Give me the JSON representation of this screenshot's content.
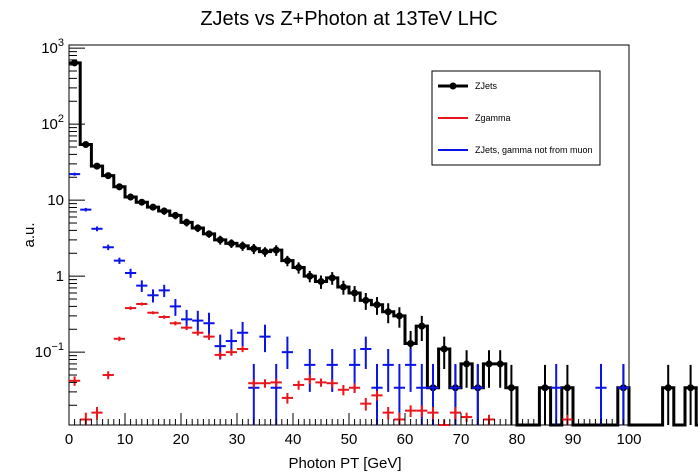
{
  "chart_data": {
    "type": "histogram",
    "title": "ZJets vs Z+Photon at 13TeV LHC",
    "xlabel": "Photon PT [GeV]",
    "ylabel": "a.u.",
    "xlim": [
      0,
      100
    ],
    "ylim": [
      0.011,
      1100
    ],
    "yscale": "log",
    "bin_width": 2,
    "grid": false,
    "legend_placement": "top-right",
    "xticks": [
      "0",
      "10",
      "20",
      "30",
      "40",
      "50",
      "60",
      "70",
      "80",
      "90",
      "100"
    ],
    "yticks": [
      {
        "base": "10",
        "exp": "3"
      },
      {
        "base": "10",
        "exp": "2"
      },
      {
        "base": "10",
        "exp": ""
      },
      {
        "base": "1",
        "exp": ""
      },
      {
        "base": "10",
        "exp": "−1"
      }
    ],
    "colors": {
      "zjets": "#000000",
      "zgamma": "#e8161c",
      "zjets_gamma": "#0a14e6"
    },
    "series": [
      {
        "name": "ZJets",
        "values": [
          640,
          54,
          28,
          21,
          15,
          11,
          9.4,
          8.1,
          7.2,
          6.3,
          5.1,
          4.3,
          3.6,
          3.0,
          2.7,
          2.5,
          2.3,
          2.1,
          2.2,
          1.6,
          1.3,
          1.0,
          0.85,
          0.95,
          0.72,
          0.6,
          0.48,
          0.42,
          0.34,
          0.3,
          0.13,
          0.22,
          0.034,
          0.11,
          0.034,
          0.07,
          0.034,
          0.07,
          0.07,
          0.034,
          0.0,
          0.0,
          0.034,
          0.0,
          0.034,
          0.0,
          0.0,
          0.0,
          0.0,
          0.034,
          0.0,
          0.0,
          0.0,
          0.034,
          0.0,
          0.034,
          0.0,
          0.0,
          0.0,
          0.0,
          0.0,
          0.0,
          0.0,
          0.0,
          0.0,
          0.0,
          0.0,
          0.0,
          0.0,
          0.0
        ],
        "err_lo": [
          580,
          50,
          26,
          19,
          13.5,
          9.9,
          8.5,
          7.3,
          6.4,
          5.6,
          4.5,
          3.8,
          3.2,
          2.6,
          2.35,
          2.15,
          1.95,
          1.8,
          1.85,
          1.35,
          1.08,
          0.83,
          0.68,
          0.77,
          0.57,
          0.46,
          0.36,
          0.31,
          0.24,
          0.21,
          0.075,
          0.14,
          0.0,
          0.06,
          0.0,
          0.034,
          0.0,
          0.034,
          0.034,
          0.0,
          0.0,
          0.0,
          0.0,
          0.0,
          0.0,
          0.0,
          0.0,
          0.0,
          0.0,
          0.0,
          0.0,
          0.0,
          0.0,
          0.0,
          0.0,
          0.0,
          0.0,
          0.0,
          0.0,
          0.0,
          0.0,
          0.0,
          0.0,
          0.0,
          0.0,
          0.0,
          0.0,
          0.0,
          0.0,
          0.0
        ],
        "err_hi": [
          705,
          58,
          30,
          23,
          16.5,
          12.1,
          10.3,
          8.9,
          8.0,
          7.0,
          5.7,
          4.8,
          4.0,
          3.4,
          3.05,
          2.85,
          2.65,
          2.4,
          2.55,
          1.85,
          1.52,
          1.17,
          1.02,
          1.13,
          0.87,
          0.74,
          0.6,
          0.53,
          0.44,
          0.39,
          0.19,
          0.3,
          0.068,
          0.16,
          0.068,
          0.106,
          0.068,
          0.106,
          0.106,
          0.068,
          0.0,
          0.0,
          0.068,
          0.0,
          0.068,
          0.0,
          0.0,
          0.0,
          0.0,
          0.068,
          0.0,
          0.0,
          0.0,
          0.068,
          0.0,
          0.068,
          0.0,
          0.0,
          0.0,
          0.0,
          0.0,
          0.0,
          0.0,
          0.0,
          0.0,
          0.0,
          0.0,
          0.0,
          0.0,
          0.0
        ]
      },
      {
        "name": "Zgamma",
        "points": [
          [
            1,
            0.042,
            0.036,
            0.048
          ],
          [
            3,
            0.013,
            0.011,
            0.016
          ],
          [
            5,
            0.016,
            0.013,
            0.019
          ],
          [
            7,
            0.05,
            0.044,
            0.056
          ],
          [
            9,
            0.15,
            0.14,
            0.16
          ],
          [
            11,
            0.38,
            0.36,
            0.4
          ],
          [
            13,
            0.43,
            0.41,
            0.45
          ],
          [
            15,
            0.33,
            0.315,
            0.345
          ],
          [
            17,
            0.29,
            0.275,
            0.305
          ],
          [
            19,
            0.24,
            0.225,
            0.255
          ],
          [
            21,
            0.21,
            0.195,
            0.225
          ],
          [
            23,
            0.18,
            0.165,
            0.195
          ],
          [
            25,
            0.16,
            0.145,
            0.175
          ],
          [
            27,
            0.092,
            0.083,
            0.101
          ],
          [
            29,
            0.1,
            0.09,
            0.11
          ],
          [
            31,
            0.11,
            0.1,
            0.12
          ],
          [
            33,
            0.039,
            0.034,
            0.044
          ],
          [
            35,
            0.039,
            0.034,
            0.044
          ],
          [
            37,
            0.04,
            0.035,
            0.045
          ],
          [
            39,
            0.025,
            0.021,
            0.029
          ],
          [
            41,
            0.037,
            0.032,
            0.042
          ],
          [
            43,
            0.044,
            0.038,
            0.05
          ],
          [
            45,
            0.04,
            0.035,
            0.045
          ],
          [
            47,
            0.039,
            0.034,
            0.044
          ],
          [
            49,
            0.032,
            0.027,
            0.037
          ],
          [
            51,
            0.034,
            0.029,
            0.039
          ],
          [
            53,
            0.021,
            0.017,
            0.025
          ],
          [
            55,
            0.027,
            0.023,
            0.031
          ],
          [
            57,
            0.016,
            0.013,
            0.019
          ],
          [
            59,
            0.013,
            0.011,
            0.016
          ],
          [
            61,
            0.017,
            0.014,
            0.02
          ],
          [
            63,
            0.017,
            0.014,
            0.02
          ],
          [
            65,
            0.016,
            0.013,
            0.019
          ],
          [
            67,
            0.011,
            0.009,
            0.013
          ],
          [
            69,
            0.016,
            0.013,
            0.019
          ],
          [
            71,
            0.014,
            0.012,
            0.016
          ],
          [
            75,
            0.013,
            0.011,
            0.015
          ],
          [
            89,
            0.013,
            0.011,
            0.015
          ]
        ]
      },
      {
        "name": "ZJets, gamma not from muon",
        "points": [
          [
            1,
            22,
            21,
            23
          ],
          [
            3,
            7.5,
            7.1,
            7.9
          ],
          [
            5,
            4.2,
            3.9,
            4.5
          ],
          [
            7,
            2.4,
            2.2,
            2.6
          ],
          [
            9,
            1.6,
            1.45,
            1.75
          ],
          [
            11,
            1.1,
            0.95,
            1.25
          ],
          [
            13,
            0.75,
            0.62,
            0.88
          ],
          [
            15,
            0.56,
            0.45,
            0.67
          ],
          [
            17,
            0.65,
            0.53,
            0.77
          ],
          [
            19,
            0.4,
            0.3,
            0.5
          ],
          [
            21,
            0.27,
            0.2,
            0.36
          ],
          [
            23,
            0.26,
            0.19,
            0.35
          ],
          [
            25,
            0.24,
            0.17,
            0.33
          ],
          [
            27,
            0.12,
            0.08,
            0.17
          ],
          [
            29,
            0.14,
            0.09,
            0.2
          ],
          [
            31,
            0.18,
            0.12,
            0.25
          ],
          [
            33,
            0.034,
            0.0,
            0.07
          ],
          [
            35,
            0.16,
            0.1,
            0.23
          ],
          [
            37,
            0.034,
            0.0,
            0.07
          ],
          [
            39,
            0.1,
            0.06,
            0.16
          ],
          [
            43,
            0.068,
            0.03,
            0.11
          ],
          [
            47,
            0.068,
            0.03,
            0.11
          ],
          [
            51,
            0.068,
            0.03,
            0.11
          ],
          [
            53,
            0.11,
            0.06,
            0.16
          ],
          [
            55,
            0.034,
            0.0,
            0.07
          ],
          [
            57,
            0.068,
            0.03,
            0.11
          ],
          [
            59,
            0.034,
            0.0,
            0.07
          ],
          [
            61,
            0.068,
            0.03,
            0.11
          ],
          [
            63,
            0.034,
            0.0,
            0.07
          ],
          [
            65,
            0.034,
            0.0,
            0.07
          ],
          [
            69,
            0.034,
            0.0,
            0.07
          ],
          [
            73,
            0.034,
            0.0,
            0.07
          ],
          [
            87,
            0.034,
            0.0,
            0.07
          ],
          [
            95,
            0.034,
            0.0,
            0.07
          ],
          [
            99,
            0.034,
            0.0,
            0.07
          ]
        ]
      }
    ]
  }
}
